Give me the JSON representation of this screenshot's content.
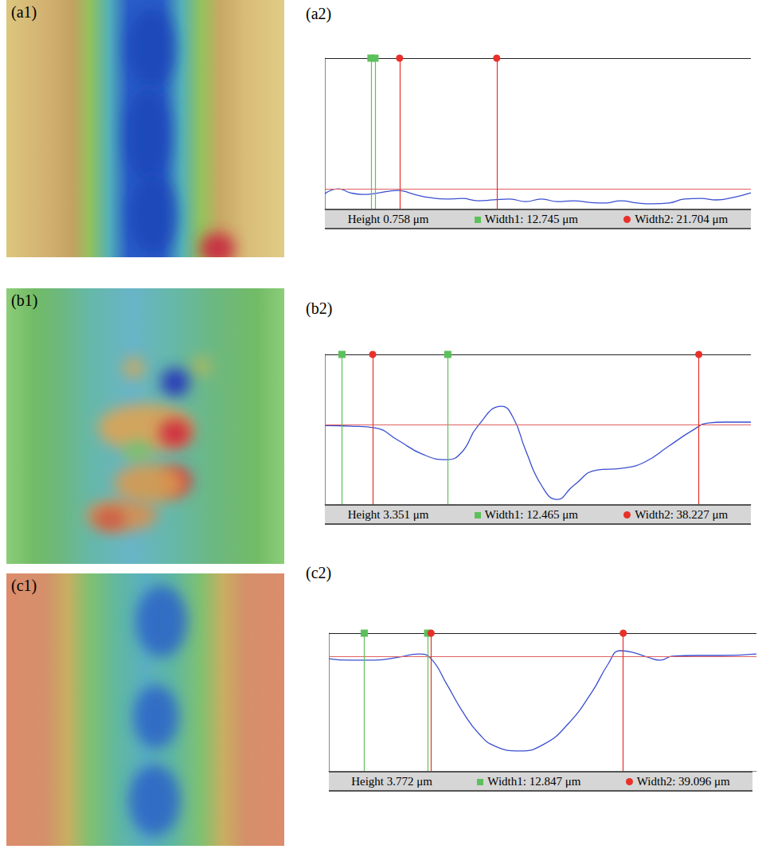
{
  "images": [
    {
      "label": "(a1)"
    },
    {
      "label": "(b1)"
    },
    {
      "label": "(c1)"
    }
  ],
  "chart_data": [
    {
      "type": "line",
      "title": "(a2)",
      "tick_labels": false,
      "grid": false,
      "color": "#3a4fd0",
      "xlim": [
        0,
        95.2
      ],
      "ylim": [
        0,
        7.2
      ],
      "x": [
        0,
        3.0,
        5.7,
        8.4,
        11.0,
        16.4,
        20.0,
        23.5,
        27.1,
        30.7,
        34.2,
        37.7,
        41.3,
        44.9,
        48.4,
        52.0,
        55.5,
        59.1,
        62.7,
        66.2,
        69.8,
        73.3,
        76.9,
        80.4,
        84.0,
        87.5,
        91.1,
        95.2
      ],
      "values": [
        0.72,
        0.95,
        0.76,
        0.68,
        0.72,
        0.87,
        0.68,
        0.53,
        0.46,
        0.49,
        0.38,
        0.42,
        0.46,
        0.34,
        0.46,
        0.34,
        0.38,
        0.3,
        0.27,
        0.38,
        0.27,
        0.23,
        0.27,
        0.46,
        0.49,
        0.42,
        0.53,
        0.76
      ],
      "reference_level": 0.95,
      "cursors": [
        {
          "color": "#5cc05c",
          "marker": "square",
          "x": [
            10.3,
            11.2
          ]
        },
        {
          "color": "#e8302a",
          "marker": "circle",
          "x": [
            16.7,
            38.4
          ]
        }
      ],
      "readouts": [
        "Height 0.758 μm",
        "Width1: 12.745 μm",
        "Width2: 21.704 μm"
      ]
    },
    {
      "type": "line",
      "title": "(b2)",
      "tick_labels": false,
      "grid": false,
      "color": "#3a4fd0",
      "xlim": [
        0,
        49.9
      ],
      "ylim": [
        0,
        6.7
      ],
      "x": [
        0,
        3.0,
        5.8,
        8.6,
        11.4,
        14.2,
        16.0,
        17.9,
        20.7,
        22.1,
        23.5,
        25.4,
        27.2,
        29.1,
        31.9,
        34.7,
        37.5,
        40.3,
        43.1,
        44.9,
        46.8,
        49.9
      ],
      "values": [
        3.52,
        3.49,
        3.42,
        2.85,
        2.24,
        1.99,
        2.31,
        3.49,
        4.38,
        3.84,
        2.42,
        0.82,
        0.21,
        0.82,
        1.53,
        1.6,
        1.89,
        2.6,
        3.31,
        3.63,
        3.67,
        3.67
      ],
      "reference_level": 3.56,
      "cursors": [
        {
          "color": "#5cc05c",
          "marker": "square",
          "x": [
            2.0,
            14.4
          ]
        },
        {
          "color": "#e8302a",
          "marker": "circle",
          "x": [
            5.6,
            43.8
          ]
        }
      ],
      "readouts": [
        "Height 3.351 μm",
        "Width1: 12.465 μm",
        "Width2: 38.227 μm"
      ]
    },
    {
      "type": "line",
      "title": "(c2)",
      "tick_labels": false,
      "grid": false,
      "color": "#3a4fd0",
      "xlim": [
        0,
        87.0
      ],
      "ylim": [
        0,
        5.5
      ],
      "x": [
        0,
        4.4,
        9.3,
        14.2,
        18.3,
        20.8,
        24.0,
        27.3,
        30.6,
        33.8,
        38.8,
        43.7,
        48.6,
        53.5,
        56.8,
        59.2,
        61.7,
        64.9,
        67.4,
        69.9,
        74.8,
        79.7,
        87.0
      ],
      "values": [
        4.48,
        4.42,
        4.42,
        4.54,
        4.67,
        4.48,
        3.46,
        2.34,
        1.47,
        0.99,
        0.8,
        1.06,
        1.86,
        3.14,
        4.26,
        4.8,
        4.74,
        4.54,
        4.42,
        4.58,
        4.61,
        4.61,
        4.67
      ],
      "reference_level": 4.58,
      "cursors": [
        {
          "color": "#5cc05c",
          "marker": "square",
          "x": [
            7.2,
            20.1
          ]
        },
        {
          "color": "#e8302a",
          "marker": "circle",
          "x": [
            20.8,
            59.9
          ]
        }
      ],
      "readouts": [
        "Height 3.772 μm",
        "Width1: 12.847 μm",
        "Width2: 39.096 μm"
      ]
    }
  ]
}
